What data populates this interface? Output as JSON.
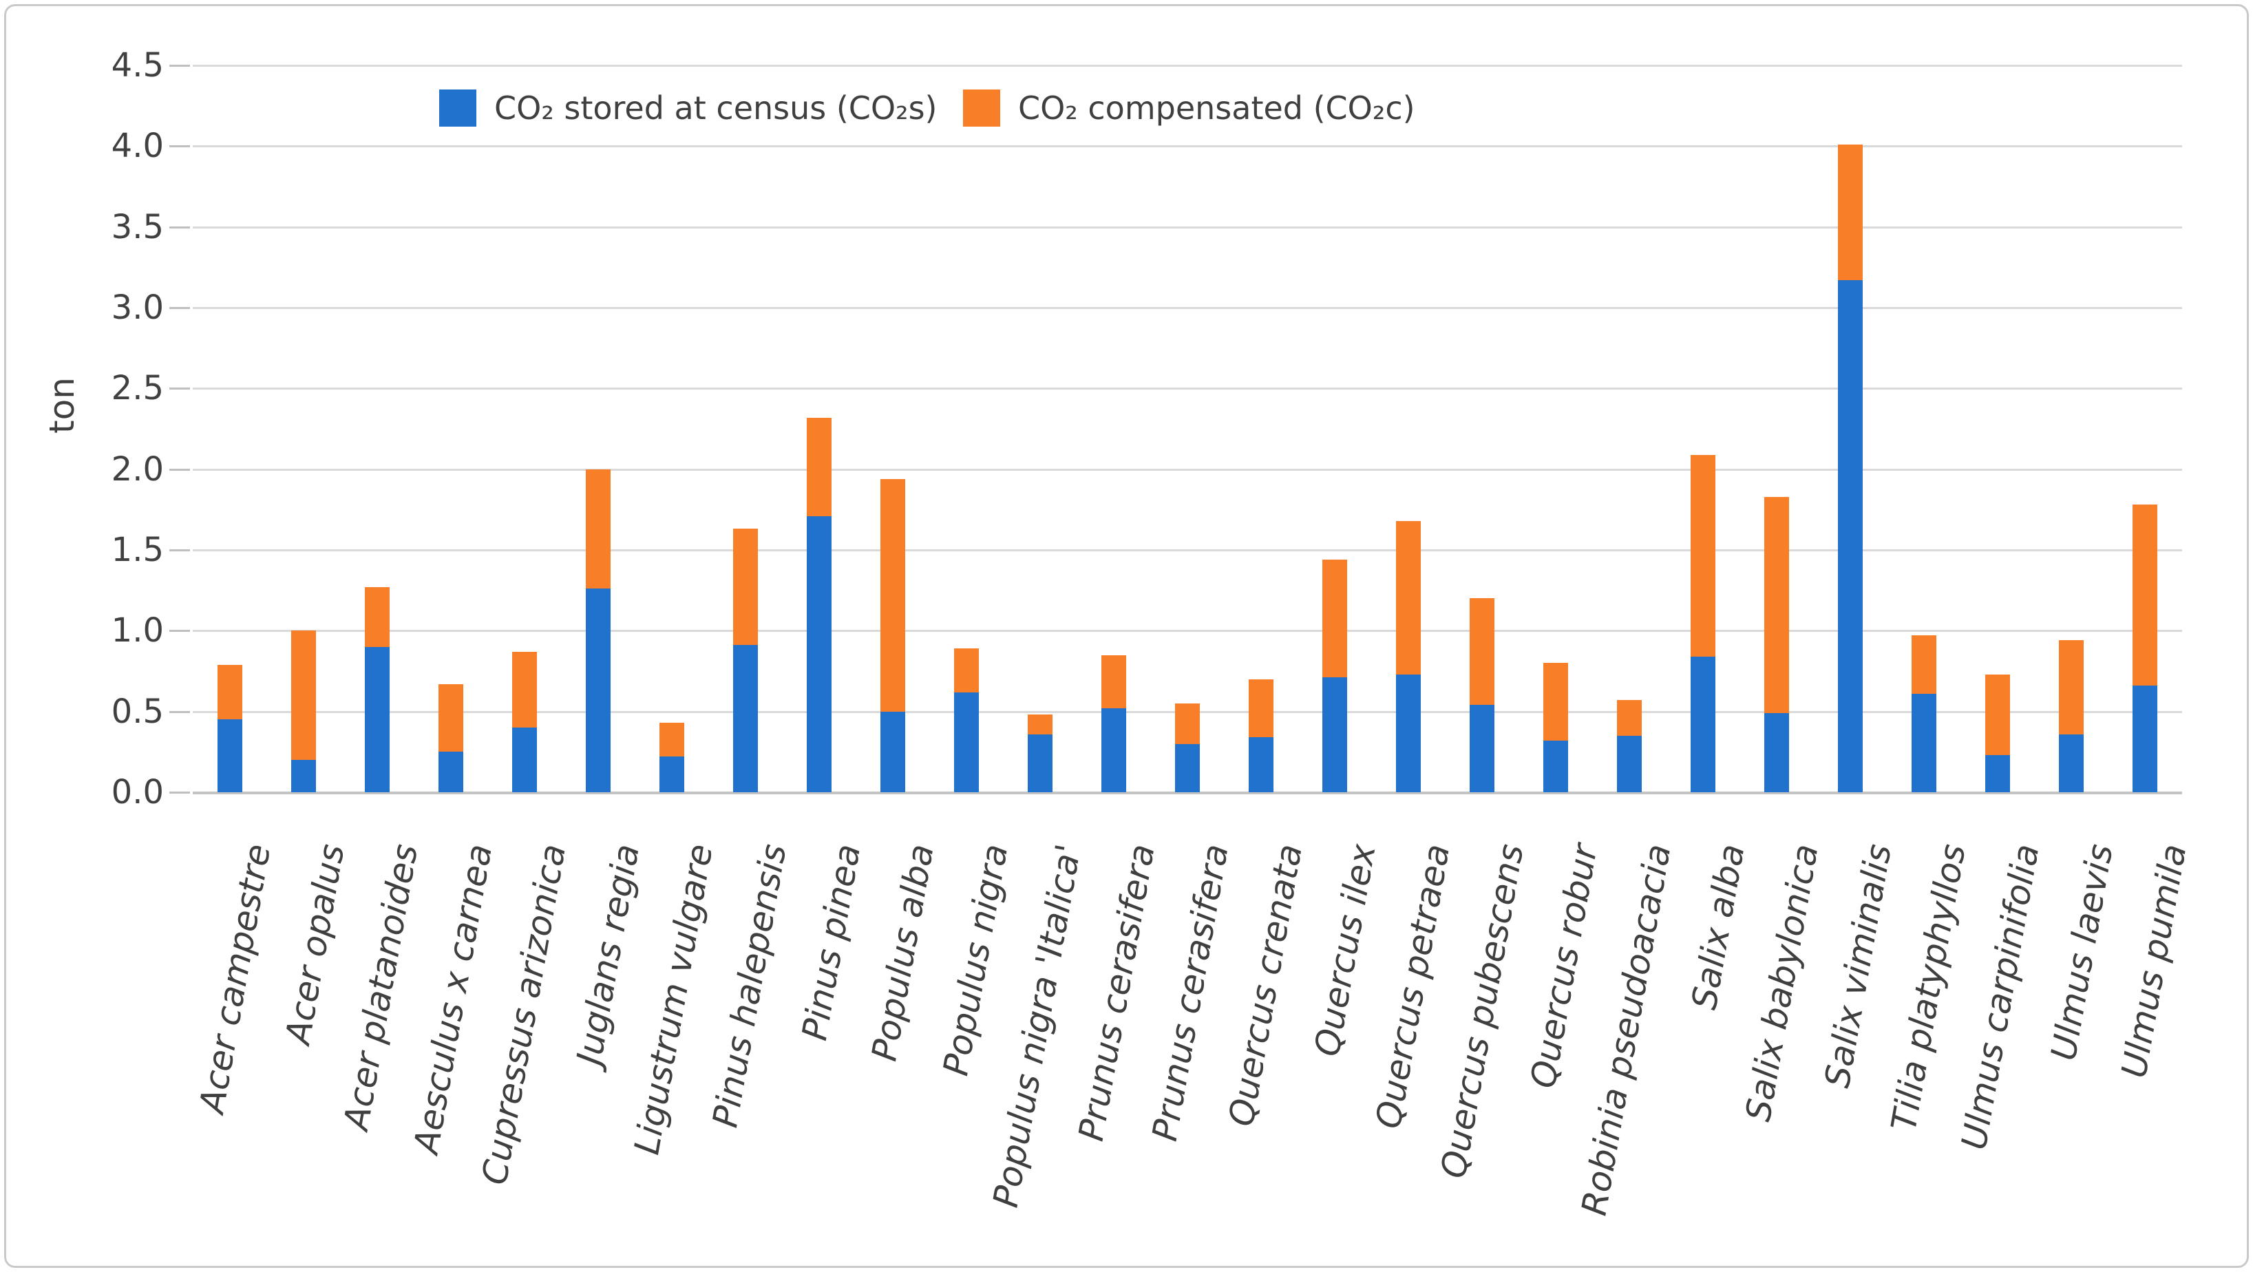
{
  "chart_data": {
    "type": "bar",
    "stacked": true,
    "title": "",
    "xlabel": "",
    "ylabel": "ton",
    "ylim": [
      0,
      4.5
    ],
    "ytick_step": 0.5,
    "ytick_labels": [
      "0.0",
      "0.5",
      "1.0",
      "1.5",
      "2.0",
      "2.5",
      "3.0",
      "3.5",
      "4.0",
      "4.5"
    ],
    "grid": true,
    "legend_position": "top-center",
    "categories": [
      "Acer campestre",
      "Acer opalus",
      "Acer platanoides",
      "Aesculus x carnea",
      "Cupressus arizonica",
      "Juglans regia",
      "Ligustrum vulgare",
      "Pinus halepensis",
      "Pinus pinea",
      "Populus alba",
      "Populus nigra",
      "Populus nigra 'Italica'",
      "Prunus cerasifera",
      "Prunus cerasifera",
      "Quercus crenata",
      "Quercus ilex",
      "Quercus petraea",
      "Quercus pubescens",
      "Quercus robur",
      "Robinia pseudoacacia",
      "Salix alba",
      "Salix babylonica",
      "Salix viminalis",
      "Tilia platyphyllos",
      "Ulmus carpinifolia",
      "Ulmus laevis",
      "Ulmus pumila"
    ],
    "series": [
      {
        "name": "CO₂ stored at census (CO₂s)",
        "color": "#2072cc",
        "values": [
          0.45,
          0.2,
          0.9,
          0.25,
          0.4,
          1.26,
          0.22,
          0.91,
          1.71,
          0.5,
          0.62,
          0.36,
          0.52,
          0.3,
          0.34,
          0.71,
          0.73,
          0.54,
          0.32,
          0.35,
          0.84,
          0.49,
          3.17,
          0.61,
          0.23,
          0.36,
          0.66
        ]
      },
      {
        "name": "CO₂ compensated (CO₂c)",
        "color": "#f87e27",
        "values": [
          0.34,
          0.8,
          0.37,
          0.42,
          0.47,
          0.74,
          0.21,
          0.72,
          0.61,
          1.44,
          0.27,
          0.12,
          0.33,
          0.25,
          0.36,
          0.73,
          0.95,
          0.66,
          0.48,
          0.22,
          1.25,
          1.34,
          0.84,
          0.36,
          0.5,
          0.58,
          1.12
        ]
      }
    ]
  },
  "colors": {
    "series1": "#2072cc",
    "series2": "#f87e27",
    "gridline": "#d9d9d9",
    "baseline": "#c4c4c4",
    "tick": "#bfbfbf",
    "text": "#3f3f3f",
    "frame_border": "#c9c9c9"
  }
}
